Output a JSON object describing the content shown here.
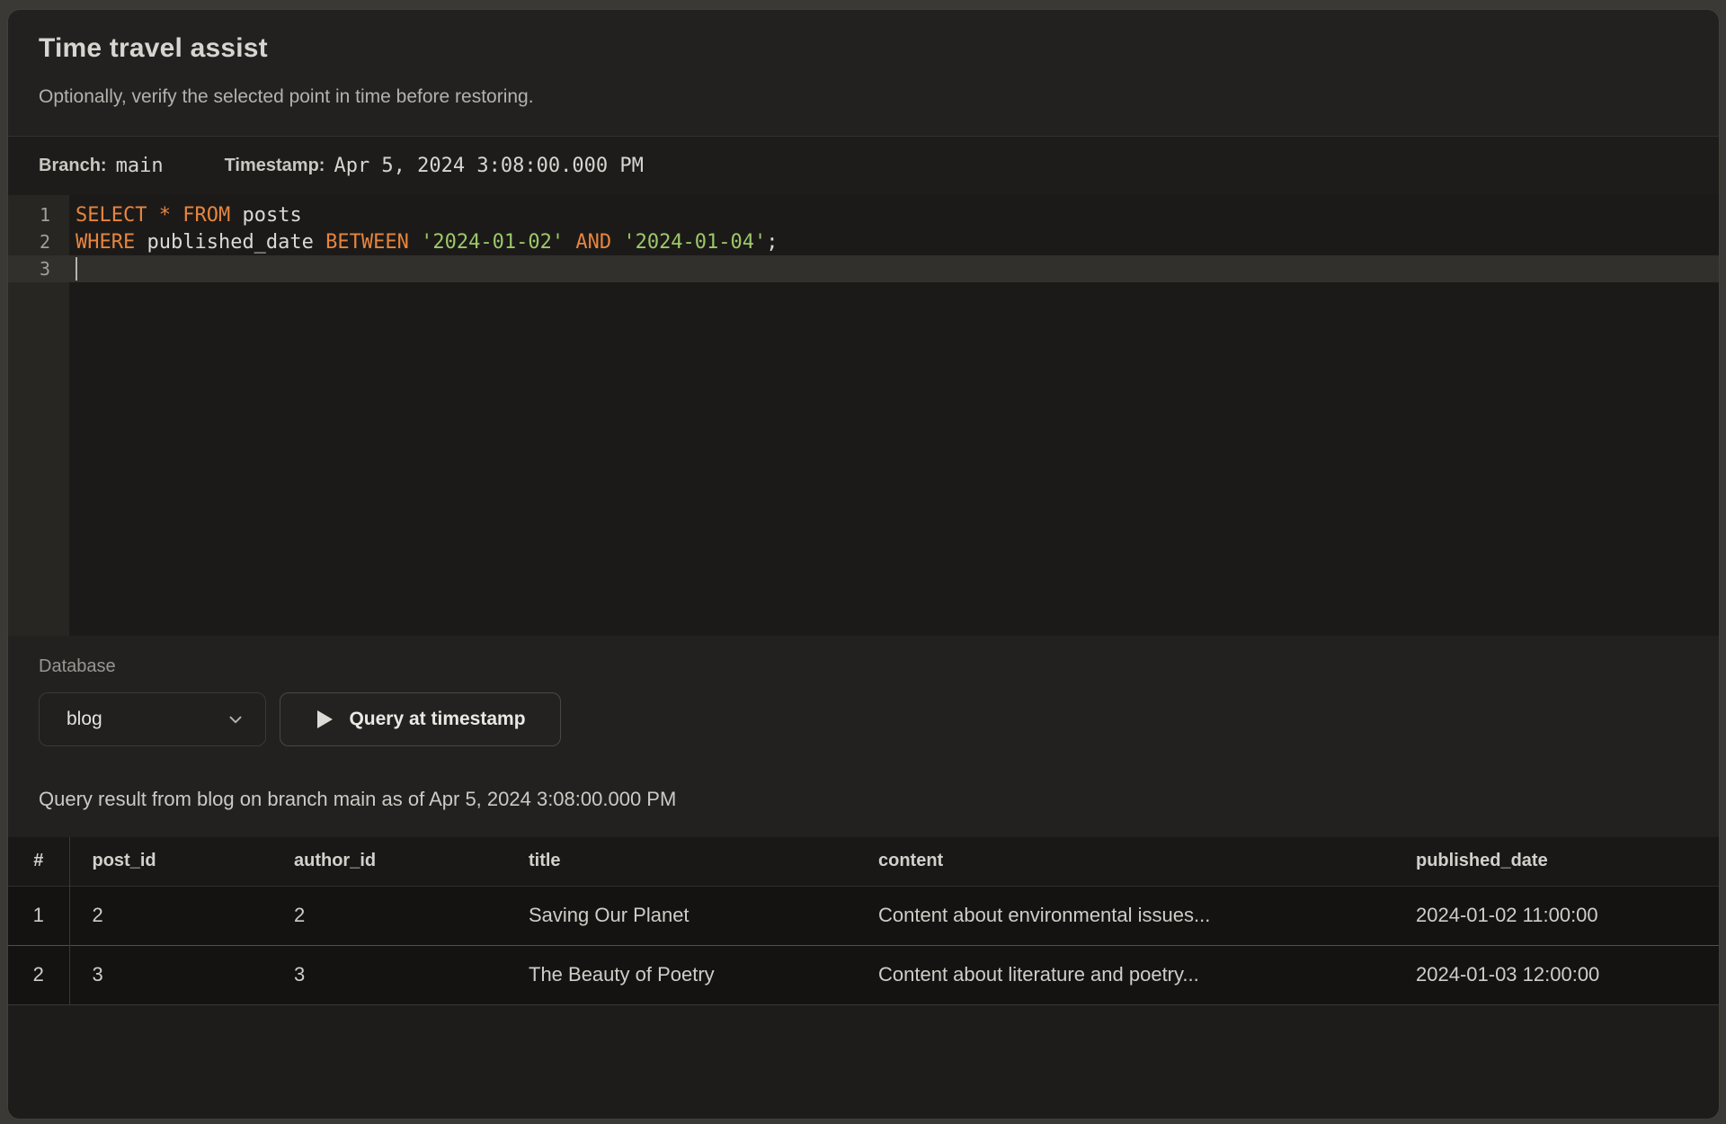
{
  "colors": {
    "sql_keyword": "#e6853f",
    "sql_string": "#9cc86a",
    "panel_background": "#232120"
  },
  "header": {
    "title": "Time travel assist",
    "subtitle": "Optionally, verify the selected point in time before restoring."
  },
  "meta": {
    "branch_label": "Branch:",
    "branch_value": "main",
    "timestamp_label": "Timestamp:",
    "timestamp_value": "Apr 5, 2024 3:08:00.000 PM"
  },
  "editor": {
    "lines": [
      {
        "number": "1",
        "active": false,
        "cursor": false,
        "tokens": [
          [
            "kw",
            "SELECT"
          ],
          [
            "pl",
            " "
          ],
          [
            "kw",
            "*"
          ],
          [
            "pl",
            " "
          ],
          [
            "kw",
            "FROM"
          ],
          [
            "pl",
            " posts"
          ]
        ]
      },
      {
        "number": "2",
        "active": false,
        "cursor": false,
        "tokens": [
          [
            "kw",
            "WHERE"
          ],
          [
            "pl",
            " published_date "
          ],
          [
            "kw",
            "BETWEEN"
          ],
          [
            "pl",
            " "
          ],
          [
            "str",
            "'2024-01-02'"
          ],
          [
            "pl",
            " "
          ],
          [
            "kw",
            "AND"
          ],
          [
            "pl",
            " "
          ],
          [
            "str",
            "'2024-01-04'"
          ],
          [
            "pl",
            ";"
          ]
        ]
      },
      {
        "number": "3",
        "active": true,
        "cursor": true,
        "tokens": []
      }
    ]
  },
  "controls": {
    "database_label": "Database",
    "database_value": "blog",
    "query_button_label": "Query at timestamp"
  },
  "result_summary": "Query result from blog on branch main as of Apr 5, 2024 3:08:00.000 PM",
  "table": {
    "columns": [
      "#",
      "post_id",
      "author_id",
      "title",
      "content",
      "published_date"
    ],
    "rows": [
      [
        "1",
        "2",
        "2",
        "Saving Our Planet",
        "Content about environmental issues...",
        "2024-01-02 11:00:00"
      ],
      [
        "2",
        "3",
        "3",
        "The Beauty of Poetry",
        "Content about literature and poetry...",
        "2024-01-03 12:00:00"
      ]
    ]
  }
}
